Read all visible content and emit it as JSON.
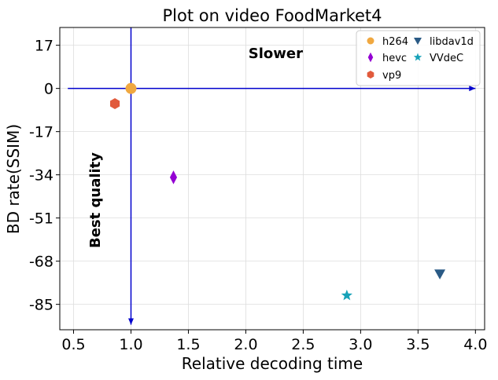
{
  "chart_data": {
    "type": "scatter",
    "title": "Plot on video FoodMarket4",
    "xlabel": "Relative decoding time",
    "ylabel": "BD rate(SSIM)",
    "xlim": [
      0.38,
      4.08
    ],
    "ylim": [
      -95,
      24
    ],
    "xticks": [
      0.5,
      1.0,
      1.5,
      2.0,
      2.5,
      3.0,
      3.5,
      4.0
    ],
    "xtick_labels": [
      "0.5",
      "1.0",
      "1.5",
      "2.0",
      "2.5",
      "3.0",
      "3.5",
      "4.0"
    ],
    "yticks": [
      17,
      0,
      -17,
      -34,
      -51,
      -68,
      -85
    ],
    "ytick_labels": [
      "17",
      "0",
      "-17",
      "-34",
      "-51",
      "-68",
      "-85"
    ],
    "grid": true,
    "legend_position": "top-right",
    "series": [
      {
        "name": "h264",
        "marker": "circle",
        "color": "#f0a840",
        "x": [
          1.0
        ],
        "y": [
          0.0
        ]
      },
      {
        "name": "hevc",
        "marker": "diamond",
        "color": "#9400d3",
        "x": [
          1.37
        ],
        "y": [
          -35.0
        ]
      },
      {
        "name": "vp9",
        "marker": "hexagon",
        "color": "#e15a3c",
        "x": [
          0.86
        ],
        "y": [
          -6.0
        ]
      },
      {
        "name": "libdav1d",
        "marker": "triangle-down",
        "color": "#2a5a85",
        "x": [
          3.69
        ],
        "y": [
          -73.0
        ]
      },
      {
        "name": "VVdeC",
        "marker": "star",
        "color": "#17a2b8",
        "x": [
          2.88
        ],
        "y": [
          -81.5
        ]
      }
    ],
    "arrows": [
      {
        "from": [
          0.45,
          0.0
        ],
        "to": [
          4.0,
          0.0
        ],
        "color": "#0000cd"
      },
      {
        "from": [
          1.0,
          24.0
        ],
        "to": [
          1.0,
          -93.0
        ],
        "color": "#0000cd"
      }
    ],
    "annotations": [
      {
        "text": "Slower",
        "x": 2.26,
        "y": 12.0,
        "rotate": 0
      },
      {
        "text": "Best quality",
        "x": 0.73,
        "y": -44.0,
        "rotate": -90
      }
    ]
  }
}
